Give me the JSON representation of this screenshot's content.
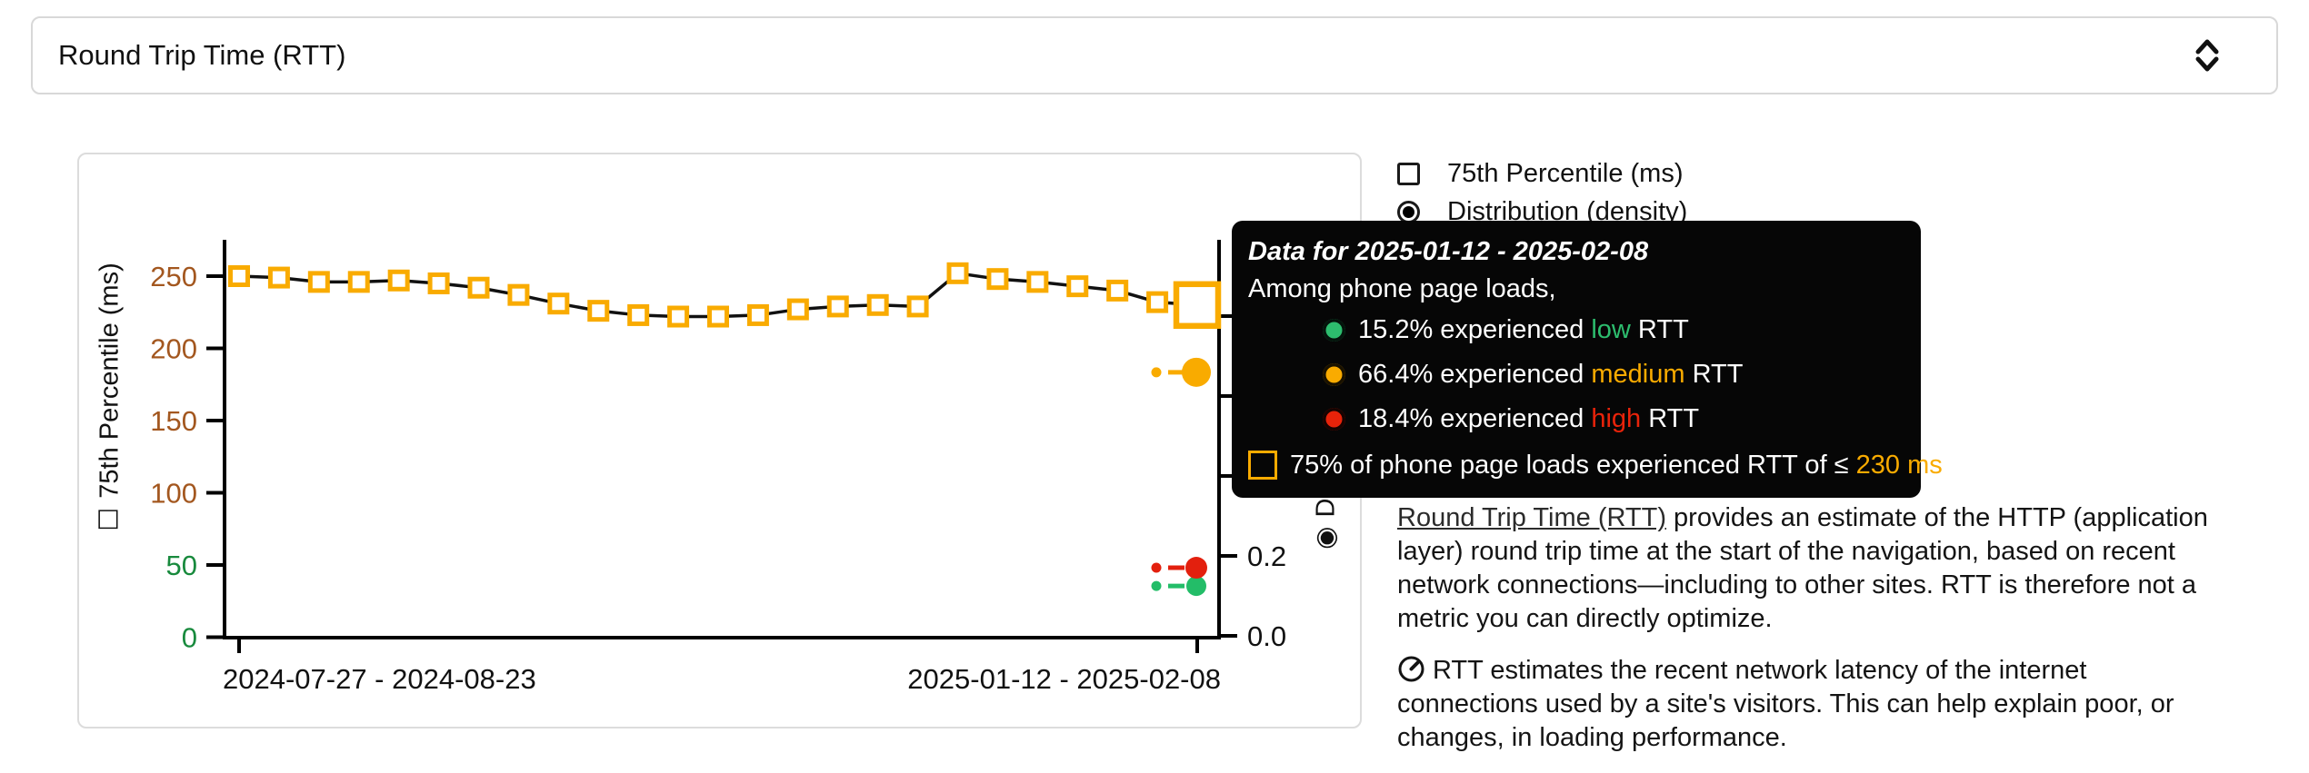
{
  "metric_selector": {
    "label": "Round Trip Time (RTT)"
  },
  "legend": {
    "percentile_label": "75th Percentile (ms)",
    "distribution_label": "Distribution (density)",
    "percentile_checked": false,
    "distribution_selected": true
  },
  "tooltip": {
    "title": "Data for 2025-01-12 - 2025-02-08",
    "subtitle": "Among phone page loads,",
    "rows": [
      {
        "percent": "15.2%",
        "middle": " experienced ",
        "category": "low",
        "unit": " RTT",
        "color": "#2dbd6e"
      },
      {
        "percent": "66.4%",
        "middle": " experienced ",
        "category": "medium",
        "unit": " RTT",
        "color": "#f9ab00"
      },
      {
        "percent": "18.4%",
        "middle": " experienced ",
        "category": "high",
        "unit": " RTT",
        "color": "#e8230a"
      }
    ],
    "footer_prefix": "75% of phone page loads experienced RTT of ≤ ",
    "footer_value": "230 ms",
    "footer_value_color": "#f9ab00"
  },
  "chart_data": {
    "type": "line",
    "title": "Round Trip Time (RTT)",
    "xlabel": "",
    "ylabel_left": "75th Percentile (ms)",
    "ylabel_right": "Distribution (density)",
    "x_tick_labels": [
      "2024-07-27 - 2024-08-23",
      "2025-01-12 - 2025-02-08"
    ],
    "left_axis": {
      "ylim": [
        0,
        275
      ],
      "ticks": [
        {
          "label": "0",
          "value": 0,
          "color": "#188a3d"
        },
        {
          "label": "50",
          "value": 50,
          "color": "#188a3d"
        },
        {
          "label": "100",
          "value": 100,
          "color": "#a3571f"
        },
        {
          "label": "150",
          "value": 150,
          "color": "#a3571f"
        },
        {
          "label": "200",
          "value": 200,
          "color": "#a3571f"
        },
        {
          "label": "250",
          "value": 250,
          "color": "#a3571f"
        }
      ]
    },
    "right_axis": {
      "ylim": [
        0,
        1.0
      ],
      "tick_values": [
        0,
        0.2,
        0.4,
        0.6,
        0.8
      ],
      "visible_tick_labels": [
        {
          "label": "0.0",
          "value": 0
        },
        {
          "label": "0.2",
          "value": 0.2
        }
      ]
    },
    "series": [
      {
        "name": "75th Percentile (ms)",
        "marker": "open-square",
        "color": "#f9ab00",
        "line_color": "#111111",
        "values": [
          250,
          249,
          246,
          246,
          247,
          245,
          242,
          237,
          231,
          226,
          223,
          222,
          222,
          223,
          227,
          229,
          230,
          229,
          252,
          248,
          246,
          243,
          240,
          232,
          230
        ],
        "highlighted_index": 24,
        "highlighted_value": 230
      },
      {
        "name": "Distribution (density), latest period",
        "marker": "dot-pair",
        "points": [
          {
            "category": "low",
            "value": 0.152,
            "color": "#23bd68"
          },
          {
            "category": "medium",
            "value": 0.664,
            "color": "#f9ab00"
          },
          {
            "category": "high",
            "value": 0.184,
            "color": "#e3200e"
          }
        ]
      }
    ],
    "grid": false,
    "legend_position": "top-right-outside"
  },
  "axis_titles": {
    "left_glyph": "☐",
    "left_text": "75th Percentile (ms)",
    "right_glyph": "◉",
    "right_text": "Distribution (density)"
  },
  "description": {
    "p1_link_text": "Round Trip Time (RTT)",
    "p1_text": " provides an estimate of the HTTP (application layer) round trip time at the start of the navigation, based on recent network connections—including to other sites. RTT is therefore not a metric you can directly optimize.",
    "p2_text": "RTT estimates the recent network latency of the internet connections used by a site's visitors. This can help explain poor, or changes, in loading performance."
  },
  "colors": {
    "marker_orange": "#f9ab00",
    "good_green": "#23bd68",
    "poor_red": "#e3200e",
    "tick_green": "#188a3d",
    "tick_brown": "#a3571f",
    "tooltip_bg": "#060606"
  }
}
